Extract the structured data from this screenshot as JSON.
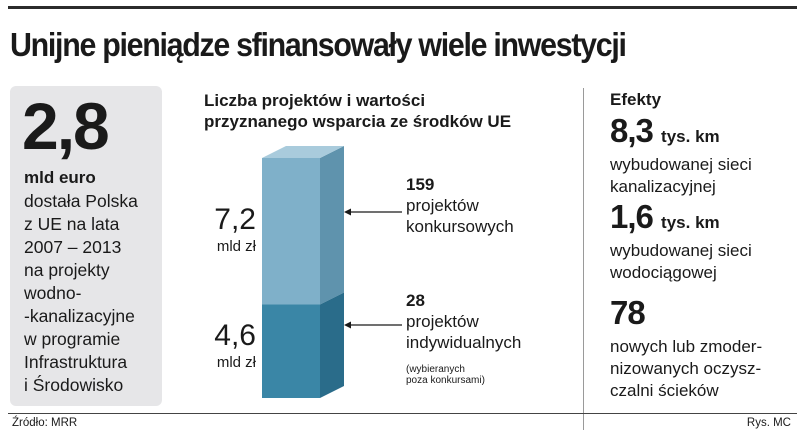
{
  "title": "Unijne pieniądze sfinansowały wiele inwestycji",
  "left_panel": {
    "big_number": "2,8",
    "big_unit": "mld euro",
    "description": "dostała Polska\nz UE na lata\n2007 – 2013\nna projekty\nwodno-\n-kanalizacyjne\nw programie\nInfrastruktura\ni Środowisko"
  },
  "chart_data": {
    "type": "bar",
    "title": "Liczba projektów  i wartości\nprzyznanego wsparcia ze środków UE",
    "categories": [
      "projektów konkursowych",
      "projektów indywidualnych"
    ],
    "series": [
      {
        "values": [
          7.2,
          4.6
        ],
        "value_labels": [
          "7,2",
          "4,6"
        ],
        "value_unit": "mld zł"
      }
    ],
    "project_counts": [
      159,
      28
    ],
    "annotations": [
      {
        "count": "159",
        "text": "projektów\nkonkursowych",
        "note": ""
      },
      {
        "count": "28",
        "text": "projektów\nindywidualnych",
        "note": "(wybieranych\npoza konkursami)"
      }
    ],
    "stacked": true,
    "colors": [
      "#7fb0c9",
      "#3a86a6"
    ],
    "side_colors": [
      "#5f93ad",
      "#2a6c8a"
    ],
    "top_color": "#a9cbdc"
  },
  "effects": {
    "heading": "Efekty",
    "items": [
      {
        "value": "8,3",
        "unit": "tys. km",
        "description": "wybudowanej sieci\nkanalizacyjnej"
      },
      {
        "value": "1,6",
        "unit": "tys. km",
        "description": "wybudowanej sieci\nwodociągowej"
      },
      {
        "value": "78",
        "unit": "",
        "description": "nowych lub zmoder-\nnizowanych oczysz-\nczalni ścieków"
      }
    ]
  },
  "source": "Źródło: MRR",
  "credit": "Rys. MC"
}
